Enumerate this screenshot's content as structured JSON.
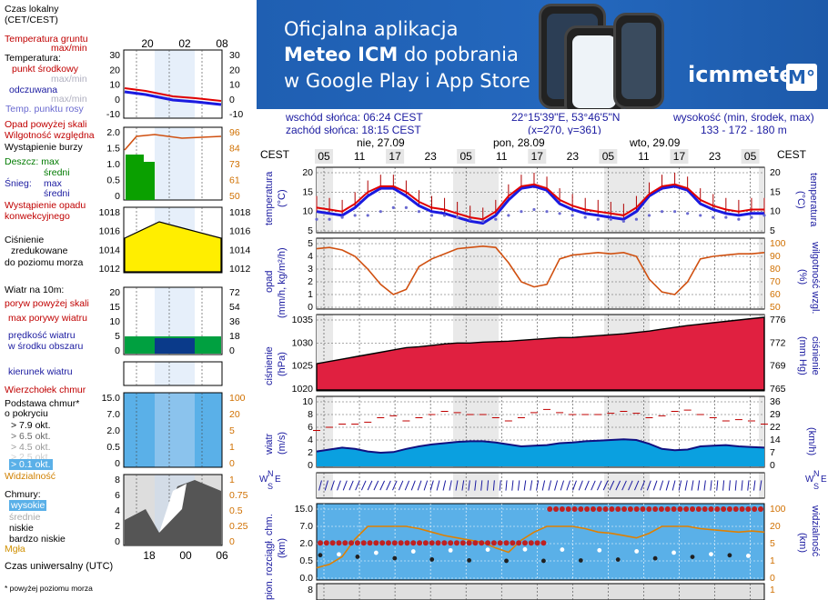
{
  "legend": {
    "czas_lokalny": "Czas lokalny",
    "cet_cest": "(CET/CEST)",
    "temp_gruntu": "Temperatura gruntu",
    "max_min": "max/min",
    "temperatura": "Temperatura:",
    "punkt_srodkowy": "punkt środkowy",
    "max_min_faint": "max/min",
    "odczuwana": "odczuwana",
    "max_min_faint2": "max/min",
    "temp_punktu_rosy": "Temp. punktu rosy",
    "opad_powyzej": "Opad powyżej skali",
    "wilgotnosc": "Wilgotność względna",
    "wystapienie_burzy": "Wystąpienie burzy",
    "deszcz_max": "Deszcz: max",
    "sredni": "średni",
    "snieg": "Śnieg:",
    "snieg_max": "max",
    "snieg_sredni": "średni",
    "wystapienie_opadu": "Wystąpienie opadu",
    "konwekcyjnego": "konwekcyjnego",
    "cisnienie": "Ciśnienie",
    "zredukowane": "zredukowane",
    "do_poziomu": "do poziomu morza",
    "wiatr_10m": "Wiatr na 10m:",
    "poryw_powyzej": "poryw powyżej skali",
    "max_porywy": "max porywy wiatru",
    "predkosc_wiatru": "prędkość wiatru",
    "w_srodku": "w środku obszaru",
    "kierunek": "kierunek wiatru",
    "wierzcholek": "Wierzchołek chmur",
    "podstawa": "Podstawa chmur*",
    "o_pokryciu": "o pokryciu",
    "okt79": "> 7.9 okt.",
    "okt65": "> 6.5 okt.",
    "okt45": "> 4.5 okt.",
    "okt25": "> 2.5 okt.",
    "okt01": "> 0.1 okt.",
    "widzialnosc": "Widzialność",
    "chmury": "Chmury:",
    "wysokie": "wysokie",
    "srednie": "średnie",
    "niskie": "niskie",
    "bardzo_niskie": "bardzo niskie",
    "mgla": "Mgła",
    "czas_uniwersalny": "Czas uniwersalny (UTC)",
    "powyzej_poziomu": "* powyżej poziomu morza"
  },
  "banner": {
    "line1": "Oficjalna aplikacja",
    "line2_strong": "Meteo ICM",
    "line2_rest": " do pobrania",
    "line3": "w Google Play i App Store",
    "brand": "icmmeteo",
    "brand_box": "M°"
  },
  "header_info": {
    "wschod": "wschód słońca: 06:24 CEST",
    "zachod": "zachód słońca: 18:15 CEST",
    "coords": "22°15'39\"E, 53°46'5\"N",
    "grid": "(x=270,  y=361)",
    "wysokosc_label": "wysokość (min, środek, max)",
    "wysokosc_values": "133 - 172 - 180 m"
  },
  "days": [
    "nie, 27.09",
    "pon, 28.09",
    "wto, 29.09"
  ],
  "hours": [
    "05",
    "11",
    "17",
    "23",
    "05",
    "11",
    "17",
    "23",
    "05",
    "11",
    "17",
    "23",
    "05"
  ],
  "cest": "CEST",
  "small_hours_top": [
    "20",
    "02",
    "08"
  ],
  "small_hours_bottom": [
    "18",
    "00",
    "06"
  ],
  "small_axes": {
    "temp_left": [
      "30",
      "20",
      "10",
      "0",
      "-10"
    ],
    "temp_right": [
      "30",
      "20",
      "10",
      "0",
      "-10"
    ],
    "rain_left": [
      "2.0",
      "1.5",
      "1.0",
      "0.5",
      "0"
    ],
    "rain_right": [
      "96",
      "84",
      "73",
      "61",
      "50"
    ],
    "press_left": [
      "1018",
      "1016",
      "1014",
      "1012"
    ],
    "press_right": [
      "1018",
      "1016",
      "1014",
      "1012"
    ],
    "wind_left": [
      "20",
      "15",
      "10",
      "5",
      "0"
    ],
    "wind_right": [
      "72",
      "54",
      "36",
      "18",
      "0"
    ],
    "cloud_left": [
      "15.0",
      "7.0",
      "2.0",
      "0.5",
      "0"
    ],
    "cloud_right": [
      "100",
      "20",
      "5",
      "1",
      "0"
    ],
    "cover_left": [
      "8",
      "6",
      "4",
      "2",
      "0"
    ],
    "cover_right": [
      "1",
      "0.75",
      "0.5",
      "0.25",
      "0"
    ]
  },
  "main_axes": {
    "temp_left": [
      "20",
      "15",
      "10",
      "5"
    ],
    "temp_right": [
      "20",
      "15",
      "10",
      "5"
    ],
    "rain_left": [
      "5",
      "4",
      "3",
      "2",
      "1",
      "0"
    ],
    "rain_right": [
      "100",
      "90",
      "80",
      "70",
      "60",
      "50"
    ],
    "press_left": [
      "1035",
      "1030",
      "1025",
      "1020"
    ],
    "press_right": [
      "776",
      "772",
      "769",
      "765"
    ],
    "wind_left": [
      "10",
      "8",
      "6",
      "4",
      "2",
      "0"
    ],
    "wind_right": [
      "36",
      "29",
      "22",
      "14",
      "7",
      "0"
    ],
    "cloud_left": [
      "15.0",
      "7.0",
      "2.0",
      "0.5",
      "0.0"
    ],
    "cloud_right": [
      "100",
      "20",
      "5",
      "1",
      "0"
    ],
    "cover_left": [
      "8"
    ],
    "cover_right": [
      "1"
    ]
  },
  "panel_labels": {
    "temperatura": "temperatura",
    "temp_unit": "(°C)",
    "opad": "opad",
    "opad_unit": "(mm/h, kg/m²/h)",
    "wilg_unit": "(%)",
    "wilg": "wilgotność wzgl.",
    "cisnienie": "ciśnienie",
    "press_unit": "(hPa)",
    "mmhg": "(mm Hg)",
    "wiatr": "wiatr",
    "wind_unit": "(m/s)",
    "kmh": "(km/h)",
    "km": "(km)",
    "pion": "pion. rozciągł. chm.",
    "widzialnosc": "widzialność",
    "compass_w": "W",
    "compass_n": "N",
    "compass_s": "S",
    "compass_e": "E"
  },
  "series": {
    "temp_mid": [
      11,
      10.5,
      10,
      12,
      15,
      16.5,
      16.5,
      15,
      12.5,
      11,
      10.5,
      9.5,
      8.5,
      8,
      10,
      14,
      16.5,
      17,
      16,
      13,
      11.5,
      10.5,
      10,
      9.5,
      9,
      11,
      14.5,
      16.5,
      17,
      16,
      13,
      11.5,
      10.5,
      10,
      10.5,
      10.5
    ],
    "temp_feel": [
      10,
      9.5,
      9,
      11,
      14,
      16,
      16,
      14,
      11.5,
      10,
      9.5,
      8.5,
      7.5,
      7,
      9,
      13,
      16,
      16.5,
      15.5,
      12,
      10.5,
      9.5,
      9,
      8.5,
      8,
      10,
      14,
      16,
      16.5,
      15.5,
      12,
      10.5,
      9.5,
      9,
      9.5,
      9.5
    ],
    "dew": [
      8,
      8,
      8.5,
      9,
      9,
      10,
      11,
      11,
      10,
      9,
      9,
      8.5,
      8,
      7.5,
      8,
      9,
      10,
      10.5,
      10,
      9.5,
      9,
      8.5,
      8,
      8,
      7.5,
      8,
      9,
      10,
      10,
      9.5,
      9,
      8.5,
      8.5,
      8,
      8.5,
      9
    ],
    "humidity": [
      96,
      97,
      95,
      90,
      80,
      68,
      60,
      64,
      82,
      88,
      92,
      96,
      97,
      98,
      97,
      85,
      70,
      66,
      68,
      88,
      91,
      92,
      93,
      92,
      93,
      90,
      72,
      62,
      60,
      70,
      88,
      90,
      91,
      92,
      92,
      93
    ],
    "pressure": [
      1025.5,
      1026,
      1026.5,
      1027,
      1027.5,
      1028,
      1028.5,
      1029,
      1029.2,
      1029.5,
      1029.8,
      1030,
      1030,
      1030.2,
      1030.3,
      1030.4,
      1030.6,
      1030.8,
      1031,
      1031.2,
      1031.2,
      1031.4,
      1031.6,
      1031.8,
      1032,
      1032.3,
      1032.6,
      1033,
      1033.4,
      1033.8,
      1034.1,
      1034.4,
      1034.7,
      1035,
      1035.3,
      1035.6
    ],
    "wind": [
      2.2,
      2.5,
      2.8,
      2.6,
      2.2,
      2.0,
      2.1,
      2.6,
      3.0,
      3.3,
      3.5,
      3.7,
      3.8,
      3.8,
      3.6,
      3.3,
      3.0,
      3.1,
      3.2,
      3.5,
      3.6,
      3.8,
      3.9,
      4.0,
      4.1,
      4.0,
      3.4,
      2.6,
      2.4,
      2.5,
      3.0,
      3.1,
      3.2,
      3.0,
      2.9,
      2.8
    ],
    "gust": [
      5.5,
      6,
      6.5,
      6.5,
      6.8,
      7.5,
      7.8,
      7,
      7.5,
      8,
      8.5,
      8.3,
      8,
      8,
      7.5,
      7,
      7.5,
      8.3,
      8.8,
      8.3,
      8,
      8,
      8,
      8.2,
      8.5,
      8.2,
      7.5,
      7.8,
      8.5,
      8.7,
      8,
      7.5,
      7,
      7.2,
      7,
      6.5
    ],
    "visibility": [
      0.6,
      0.8,
      2,
      9,
      20,
      20,
      20,
      20,
      18,
      15,
      12,
      10,
      8,
      6,
      4,
      3,
      8,
      15,
      20,
      20,
      20,
      18,
      15,
      14,
      12,
      10,
      14,
      20,
      20,
      20,
      18,
      17,
      16,
      15,
      16,
      15
    ]
  }
}
